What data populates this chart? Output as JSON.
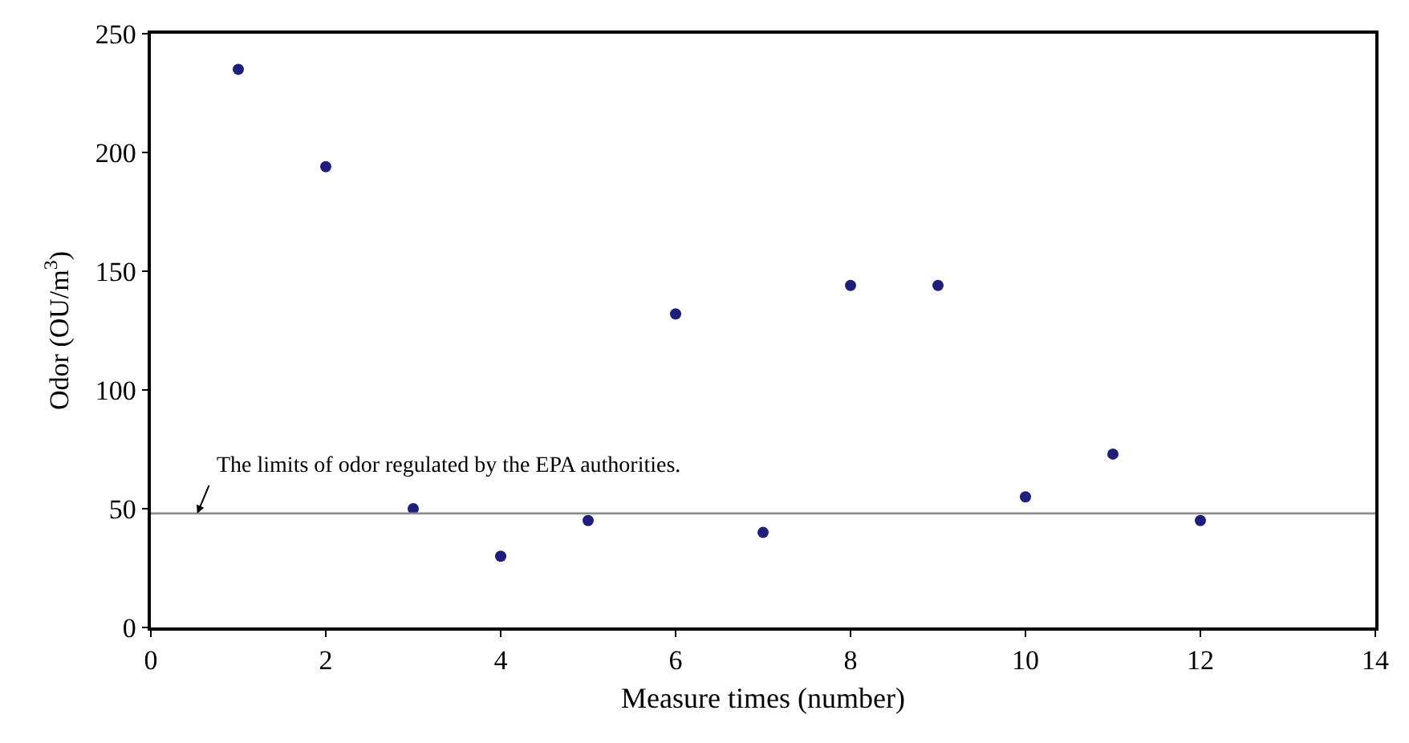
{
  "chart_data": {
    "type": "scatter",
    "xlabel": "Measure times (number)",
    "ylabel": "Odor (OU/m$^{3}$)",
    "x": [
      1,
      2,
      3,
      4,
      5,
      6,
      7,
      8,
      9,
      10,
      11,
      12
    ],
    "series": [
      {
        "color": "#1f1f7a",
        "values": [
          235,
          194,
          50,
          30,
          45,
          132,
          40,
          144,
          144,
          55,
          73,
          45
        ]
      }
    ],
    "xlim": [
      0,
      14
    ],
    "xticks": [
      0,
      2,
      4,
      6,
      8,
      10,
      12,
      14
    ],
    "ylim": [
      0,
      250
    ],
    "yticks": [
      0,
      50,
      100,
      150,
      200,
      250
    ],
    "ref_lines": [
      {
        "axis": "y",
        "value": 48,
        "color": "#8c8c8c",
        "line_style": "solid"
      }
    ],
    "annotations": [
      {
        "text": "The limits of odor regulated by the EPA authorities.",
        "x": 0.53,
        "y": 48
      }
    ],
    "marker": "circle"
  }
}
